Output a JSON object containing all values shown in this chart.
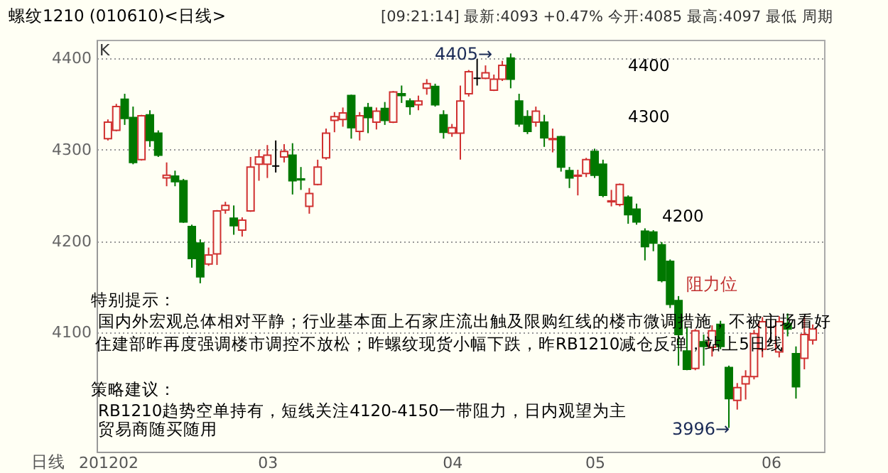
{
  "chart_data": {
    "type": "candlestick",
    "title": "螺纹1210 (010610)<日线>",
    "subtitle": "[09:21:14]  最新:4093  +0.47%  今开:4085  最高:4097  最低 周期",
    "xlabel": "日线",
    "categories": [
      "201202",
      null,
      null,
      null,
      null,
      null,
      null,
      null,
      null,
      null,
      null,
      null,
      null,
      null,
      null,
      null,
      null,
      null,
      null,
      "03",
      null,
      null,
      null,
      null,
      null,
      null,
      null,
      null,
      null,
      null,
      null,
      null,
      null,
      null,
      null,
      null,
      null,
      null,
      null,
      null,
      null,
      "04",
      null,
      null,
      null,
      null,
      null,
      null,
      null,
      null,
      null,
      null,
      null,
      null,
      null,
      null,
      null,
      null,
      "05",
      null,
      null,
      null,
      null,
      null,
      null,
      null,
      null,
      null,
      null,
      null,
      null,
      null,
      null,
      null,
      null,
      null,
      null,
      null,
      null,
      "06",
      null,
      null,
      null,
      null,
      null
    ],
    "ohlc": [
      [
        4312,
        4333,
        4310,
        4330
      ],
      [
        4321,
        4350,
        4320,
        4347
      ],
      [
        4355,
        4361,
        4327,
        4334
      ],
      [
        4335,
        4347,
        4284,
        4286
      ],
      [
        4289,
        4338,
        4288,
        4337
      ],
      [
        4338,
        4343,
        4303,
        4310
      ],
      [
        4318,
        4321,
        4292,
        4294
      ],
      [
        4269,
        4286,
        4260,
        4272
      ],
      [
        4271,
        4277,
        4260,
        4265
      ],
      [
        4266,
        4268,
        4220,
        4221
      ],
      [
        4216,
        4218,
        4171,
        4181
      ],
      [
        4198,
        4202,
        4154,
        4161
      ],
      [
        4175,
        4193,
        4173,
        4185
      ],
      [
        4186,
        4234,
        4174,
        4233
      ],
      [
        4234,
        4243,
        4230,
        4239
      ],
      [
        4225,
        4239,
        4207,
        4217
      ],
      [
        4212,
        4226,
        4205,
        4223
      ],
      [
        4233,
        4292,
        4232,
        4281
      ],
      [
        4284,
        4300,
        4266,
        4292
      ],
      [
        4284,
        4305,
        4269,
        4294
      ],
      [
        4282,
        4310,
        4275,
        4282
      ],
      [
        4292,
        4306,
        4286,
        4298
      ],
      [
        4294,
        4307,
        4251,
        4266
      ],
      [
        4268,
        4281,
        4256,
        4267
      ],
      [
        4238,
        4258,
        4230,
        4252
      ],
      [
        4262,
        4289,
        4261,
        4281
      ],
      [
        4291,
        4323,
        4289,
        4318
      ],
      [
        4332,
        4341,
        4319,
        4336
      ],
      [
        4333,
        4346,
        4325,
        4340
      ],
      [
        4359,
        4360,
        4312,
        4324
      ],
      [
        4320,
        4341,
        4310,
        4337
      ],
      [
        4346,
        4351,
        4318,
        4335
      ],
      [
        4330,
        4346,
        4322,
        4342
      ],
      [
        4345,
        4352,
        4327,
        4332
      ],
      [
        4330,
        4364,
        4329,
        4363
      ],
      [
        4361,
        4370,
        4351,
        4359
      ],
      [
        4353,
        4356,
        4338,
        4347
      ],
      [
        4349,
        4359,
        4343,
        4353
      ],
      [
        4367,
        4377,
        4360,
        4372
      ],
      [
        4369,
        4372,
        4347,
        4349
      ],
      [
        4338,
        4343,
        4312,
        4319
      ],
      [
        4318,
        4328,
        4314,
        4324
      ],
      [
        4318,
        4370,
        4289,
        4353
      ],
      [
        4361,
        4387,
        4358,
        4385
      ],
      [
        4378,
        4399,
        4370,
        4378
      ],
      [
        4378,
        4392,
        4377,
        4384
      ],
      [
        4365,
        4382,
        4364,
        4377
      ],
      [
        4377,
        4397,
        4375,
        4392
      ],
      [
        4400,
        4405,
        4367,
        4377
      ],
      [
        4353,
        4361,
        4325,
        4328
      ],
      [
        4336,
        4343,
        4317,
        4320
      ],
      [
        4330,
        4347,
        4325,
        4342
      ],
      [
        4330,
        4338,
        4303,
        4313
      ],
      [
        4311,
        4323,
        4297,
        4312
      ],
      [
        4314,
        4315,
        4276,
        4281
      ],
      [
        4277,
        4281,
        4258,
        4269
      ],
      [
        4271,
        4278,
        4250,
        4272
      ],
      [
        4274,
        4291,
        4270,
        4289
      ],
      [
        4298,
        4301,
        4269,
        4272
      ],
      [
        4284,
        4289,
        4248,
        4250
      ],
      [
        4243,
        4256,
        4238,
        4244
      ],
      [
        4240,
        4263,
        4238,
        4262
      ],
      [
        4248,
        4250,
        4219,
        4229
      ],
      [
        4235,
        4241,
        4218,
        4221
      ],
      [
        4211,
        4214,
        4179,
        4194
      ],
      [
        4210,
        4212,
        4189,
        4198
      ],
      [
        4196,
        4199,
        4155,
        4157
      ],
      [
        4178,
        4180,
        4127,
        4131
      ],
      [
        4135,
        4140,
        4064,
        4098
      ],
      [
        4080,
        4106,
        4059,
        4060
      ],
      [
        4061,
        4104,
        4059,
        4102
      ],
      [
        4090,
        4098,
        4064,
        4085
      ],
      [
        4084,
        4108,
        4074,
        4102
      ],
      [
        4109,
        4113,
        4082,
        4085
      ],
      [
        4062,
        4064,
        3996,
        4028
      ],
      [
        4026,
        4045,
        4016,
        4040
      ],
      [
        4044,
        4059,
        4027,
        4052
      ],
      [
        4052,
        4103,
        4049,
        4099
      ],
      [
        4082,
        4117,
        4073,
        4112
      ],
      [
        4106,
        4114,
        4089,
        4106
      ],
      [
        4079,
        4118,
        4073,
        4112
      ],
      [
        4110,
        4121,
        4096,
        4104
      ],
      [
        4077,
        4085,
        4028,
        4041
      ],
      [
        4072,
        4117,
        4060,
        4098
      ],
      [
        4092,
        4109,
        4087,
        4104
      ]
    ],
    "colors": [
      "#d03030",
      "#d03030",
      "#007800",
      "#007800",
      "#d03030",
      "#007800",
      "#007800",
      "#d03030",
      "#007800",
      "#007800",
      "#007800",
      "#007800",
      "#d03030",
      "#d03030",
      "#d03030",
      "#007800",
      "#d03030",
      "#d03030",
      "#d03030",
      "#d03030",
      "#000000",
      "#d03030",
      "#007800",
      "#007800",
      "#d03030",
      "#d03030",
      "#d03030",
      "#d03030",
      "#d03030",
      "#007800",
      "#d03030",
      "#007800",
      "#d03030",
      "#007800",
      "#d03030",
      "#007800",
      "#007800",
      "#d03030",
      "#d03030",
      "#007800",
      "#007800",
      "#d03030",
      "#d03030",
      "#d03030",
      "#000000",
      "#d03030",
      "#d03030",
      "#d03030",
      "#007800",
      "#007800",
      "#007800",
      "#d03030",
      "#007800",
      "#d03030",
      "#007800",
      "#007800",
      "#d03030",
      "#d03030",
      "#007800",
      "#007800",
      "#d03030",
      "#d03030",
      "#007800",
      "#007800",
      "#007800",
      "#007800",
      "#007800",
      "#007800",
      "#007800",
      "#007800",
      "#d03030",
      "#007800",
      "#d03030",
      "#007800",
      "#007800",
      "#d03030",
      "#d03030",
      "#d03030",
      "#d03030",
      "#000000",
      "#d03030",
      "#007800",
      "#007800",
      "#d03030",
      "#d03030"
    ],
    "ylim": [
      3970,
      4420
    ],
    "yticks": [
      4100,
      4200,
      4300,
      4400
    ],
    "grid": "y",
    "annotations": [
      "K",
      "4400",
      "4300",
      "4200",
      "阻力位",
      "特别提示：",
      "国内外宏观总体相对平静；行业基本面上石家庄流出触及限购红线的楼市微调措施，不被市场看好",
      "住建部昨再度强调楼市调控不放松；昨螺纹现货小幅下跌，昨RB1210减仓反弹，站上5日线",
      "策略建议：",
      "RB1210趋势空单持有，短线关注4120-4150一带阻力，日内观望为主",
      "贸易商随买随用",
      "4405→",
      "3996→"
    ]
  }
}
